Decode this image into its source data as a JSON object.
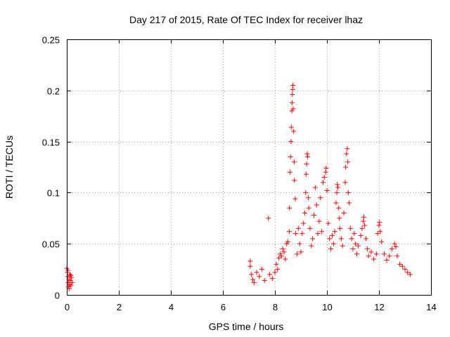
{
  "chart_data": {
    "type": "scatter",
    "title": "Day 217 of 2015, Rate Of TEC Index for receiver lhaz",
    "xlabel": "GPS time / hours",
    "ylabel": "ROTI / TECUs",
    "xlim": [
      0,
      14
    ],
    "ylim": [
      0,
      0.25
    ],
    "xticks": [
      0,
      2,
      4,
      6,
      8,
      10,
      12,
      14
    ],
    "xtick_labels": [
      "0",
      "2",
      "4",
      "6",
      "8",
      "10",
      "12",
      "14"
    ],
    "yticks": [
      0,
      0.05,
      0.1,
      0.15,
      0.2,
      0.25
    ],
    "ytick_labels": [
      "0",
      "0.05",
      "0.1",
      "0.15",
      "0.2",
      "0.25"
    ],
    "grid": true,
    "marker": "+",
    "marker_color": "#ff0000",
    "series": [
      {
        "name": "ROTI",
        "points": [
          [
            0.0,
            0.026
          ],
          [
            0.02,
            0.022
          ],
          [
            0.03,
            0.018
          ],
          [
            0.05,
            0.012
          ],
          [
            0.06,
            0.008
          ],
          [
            0.08,
            0.015
          ],
          [
            0.1,
            0.01
          ],
          [
            0.12,
            0.02
          ],
          [
            0.14,
            0.014
          ],
          [
            0.16,
            0.009
          ],
          [
            0.18,
            0.017
          ],
          [
            0.2,
            0.012
          ],
          [
            0.04,
            0.024
          ],
          [
            0.09,
            0.006
          ],
          [
            0.15,
            0.019
          ],
          [
            7.05,
            0.033
          ],
          [
            7.05,
            0.028
          ],
          [
            7.1,
            0.02
          ],
          [
            7.15,
            0.015
          ],
          [
            7.2,
            0.012
          ],
          [
            7.3,
            0.022
          ],
          [
            7.4,
            0.018
          ],
          [
            7.5,
            0.025
          ],
          [
            7.6,
            0.014
          ],
          [
            7.75,
            0.075
          ],
          [
            7.8,
            0.02
          ],
          [
            7.9,
            0.016
          ],
          [
            8.0,
            0.022
          ],
          [
            8.05,
            0.03
          ],
          [
            8.1,
            0.025
          ],
          [
            8.15,
            0.036
          ],
          [
            8.2,
            0.04
          ],
          [
            8.25,
            0.038
          ],
          [
            8.3,
            0.045
          ],
          [
            8.35,
            0.042
          ],
          [
            8.4,
            0.035
          ],
          [
            8.45,
            0.05
          ],
          [
            8.5,
            0.052
          ],
          [
            8.55,
            0.062
          ],
          [
            8.56,
            0.085
          ],
          [
            8.58,
            0.12
          ],
          [
            8.6,
            0.135
          ],
          [
            8.62,
            0.15
          ],
          [
            8.63,
            0.164
          ],
          [
            8.65,
            0.18
          ],
          [
            8.66,
            0.188
          ],
          [
            8.67,
            0.196
          ],
          [
            8.68,
            0.201
          ],
          [
            8.69,
            0.205
          ],
          [
            8.7,
            0.182
          ],
          [
            8.72,
            0.16
          ],
          [
            8.74,
            0.13
          ],
          [
            8.75,
            0.112
          ],
          [
            8.78,
            0.094
          ],
          [
            8.8,
            0.06
          ],
          [
            8.85,
            0.04
          ],
          [
            8.9,
            0.065
          ],
          [
            8.95,
            0.05
          ],
          [
            9.0,
            0.042
          ],
          [
            9.05,
            0.06
          ],
          [
            9.1,
            0.07
          ],
          [
            9.15,
            0.08
          ],
          [
            9.18,
            0.1
          ],
          [
            9.2,
            0.118
          ],
          [
            9.22,
            0.128
          ],
          [
            9.24,
            0.138
          ],
          [
            9.26,
            0.135
          ],
          [
            9.28,
            0.095
          ],
          [
            9.3,
            0.085
          ],
          [
            9.35,
            0.065
          ],
          [
            9.4,
            0.048
          ],
          [
            9.45,
            0.055
          ],
          [
            9.5,
            0.078
          ],
          [
            9.55,
            0.105
          ],
          [
            9.6,
            0.088
          ],
          [
            9.65,
            0.06
          ],
          [
            9.7,
            0.072
          ],
          [
            9.75,
            0.095
          ],
          [
            9.8,
            0.062
          ],
          [
            9.85,
            0.11
          ],
          [
            9.9,
            0.115
          ],
          [
            9.95,
            0.12
          ],
          [
            9.97,
            0.124
          ],
          [
            10.0,
            0.102
          ],
          [
            10.05,
            0.07
          ],
          [
            10.1,
            0.055
          ],
          [
            10.15,
            0.045
          ],
          [
            10.2,
            0.058
          ],
          [
            10.25,
            0.05
          ],
          [
            10.3,
            0.062
          ],
          [
            10.35,
            0.09
          ],
          [
            10.38,
            0.1
          ],
          [
            10.4,
            0.108
          ],
          [
            10.42,
            0.105
          ],
          [
            10.45,
            0.085
          ],
          [
            10.48,
            0.075
          ],
          [
            10.5,
            0.065
          ],
          [
            10.55,
            0.055
          ],
          [
            10.6,
            0.048
          ],
          [
            10.65,
            0.08
          ],
          [
            10.7,
            0.11
          ],
          [
            10.72,
            0.125
          ],
          [
            10.75,
            0.138
          ],
          [
            10.78,
            0.143
          ],
          [
            10.8,
            0.13
          ],
          [
            10.82,
            0.1
          ],
          [
            10.85,
            0.09
          ],
          [
            10.9,
            0.065
          ],
          [
            10.95,
            0.055
          ],
          [
            11.0,
            0.045
          ],
          [
            11.05,
            0.06
          ],
          [
            11.1,
            0.05
          ],
          [
            11.15,
            0.04
          ],
          [
            11.2,
            0.048
          ],
          [
            11.3,
            0.058
          ],
          [
            11.35,
            0.065
          ],
          [
            11.4,
            0.072
          ],
          [
            11.42,
            0.076
          ],
          [
            11.45,
            0.068
          ],
          [
            11.5,
            0.055
          ],
          [
            11.55,
            0.045
          ],
          [
            11.6,
            0.038
          ],
          [
            11.7,
            0.042
          ],
          [
            11.8,
            0.035
          ],
          [
            11.9,
            0.04
          ],
          [
            11.95,
            0.06
          ],
          [
            12.0,
            0.068
          ],
          [
            12.02,
            0.071
          ],
          [
            12.05,
            0.062
          ],
          [
            12.1,
            0.052
          ],
          [
            12.2,
            0.04
          ],
          [
            12.3,
            0.034
          ],
          [
            12.4,
            0.038
          ],
          [
            12.5,
            0.045
          ],
          [
            12.6,
            0.05
          ],
          [
            12.65,
            0.047
          ],
          [
            12.7,
            0.038
          ],
          [
            12.8,
            0.03
          ],
          [
            12.9,
            0.028
          ],
          [
            13.0,
            0.025
          ],
          [
            13.1,
            0.022
          ],
          [
            13.2,
            0.02
          ]
        ]
      }
    ]
  }
}
